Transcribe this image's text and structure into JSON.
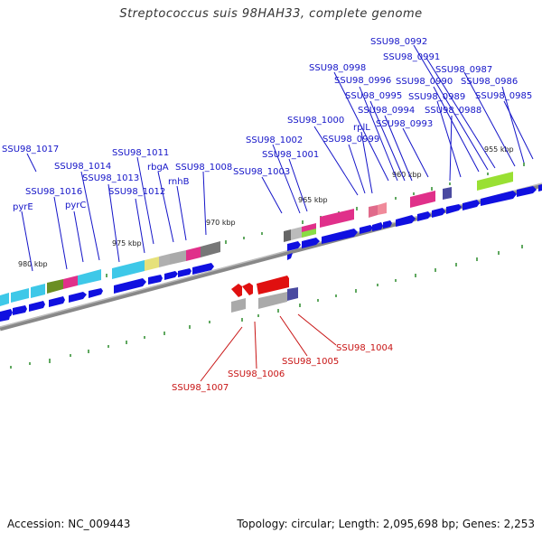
{
  "title": "Streptococcus suis 98HAH33, complete genome",
  "footer": {
    "accession": "Accession: NC_009443",
    "topology": "Topology: circular; Length: 2,095,698 bp; Genes: 2,253"
  },
  "colors": {
    "label_forward": "#1414c8",
    "label_reverse": "#c81414",
    "ruler": "#888888",
    "tick": "#2a8a2a",
    "cds": "#1010e0",
    "cds_reverse": "#e01010"
  },
  "scale_labels": [
    "955 kbp",
    "960 kbp",
    "965 kbp",
    "970 kbp",
    "975 kbp",
    "980 kbp"
  ],
  "gene_labels_forward": [
    "SSU98_0992",
    "SSU98_0991",
    "SSU98_0987",
    "SSU98_0998",
    "SSU98_0996",
    "SSU98_0990",
    "SSU98_0986",
    "SSU98_0995",
    "SSU98_0989",
    "SSU98_0985",
    "SSU98_0994",
    "SSU98_0988",
    "SSU98_1000",
    "rplL",
    "SSU98_0993",
    "SSU98_1002",
    "SSU98_0999",
    "SSU98_1017",
    "SSU98_1011",
    "SSU98_1001",
    "SSU98_1014",
    "rbgA",
    "SSU98_1008",
    "SSU98_1003",
    "SSU98_1013",
    "rnhB",
    "SSU98_1016",
    "SSU98_1012",
    "pyrE",
    "pyrC"
  ],
  "gene_labels_reverse": [
    "SSU98_1004",
    "SSU98_1005",
    "SSU98_1006",
    "SSU98_1007"
  ]
}
